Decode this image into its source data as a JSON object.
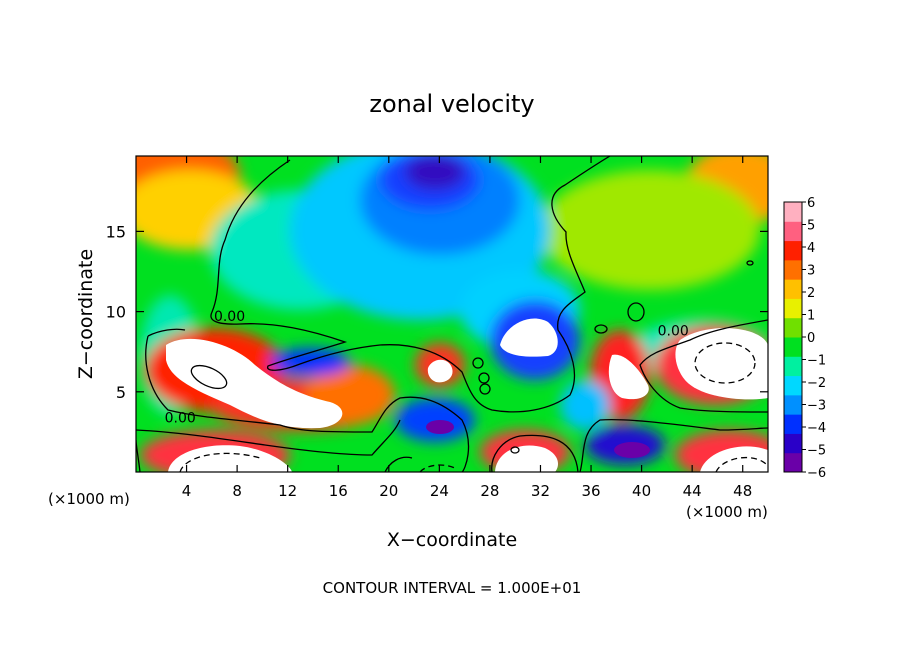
{
  "chart_data": {
    "type": "heatmap",
    "title": "zonal velocity",
    "xlabel": "X−coordinate",
    "ylabel": "Z−coordinate",
    "x_scale_note_left": "(×1000 m)",
    "x_scale_note_right": "(×1000 m)",
    "footer": "CONTOUR INTERVAL = 1.000E+01",
    "xlim": [
      0,
      50
    ],
    "ylim": [
      0,
      19.7
    ],
    "x_ticks": [
      4,
      8,
      12,
      16,
      20,
      24,
      28,
      32,
      36,
      40,
      44,
      48
    ],
    "x_tick_labels": [
      "4",
      "8",
      "12",
      "16",
      "20",
      "24",
      "28",
      "32",
      "36",
      "40",
      "44",
      "48"
    ],
    "y_ticks": [
      5,
      10,
      15
    ],
    "y_tick_labels": [
      "5",
      "10",
      "15"
    ],
    "colorbar": {
      "min": -6,
      "max": 6,
      "ticks": [
        6,
        5,
        4,
        3,
        2,
        1,
        0,
        -1,
        -2,
        -3,
        -4,
        -5,
        -6
      ],
      "tick_labels": [
        "6",
        "5",
        "4",
        "3",
        "2",
        "1",
        "0",
        "−1",
        "−2",
        "−3",
        "−4",
        "−5",
        "−6"
      ],
      "colors": [
        "#6a00a8",
        "#2a00c8",
        "#0030ff",
        "#0090ff",
        "#00d8ff",
        "#00f0a0",
        "#00e020",
        "#70e000",
        "#e8f000",
        "#ffc000",
        "#ff7000",
        "#ff2000",
        "#ff6080",
        "#ffb0c0"
      ],
      "overflow_color": "#ffffff"
    },
    "contour_labels": [
      {
        "text": "0.00",
        "x": 7.4,
        "y": 9.4
      },
      {
        "text": "0.00",
        "x": 3.5,
        "y": 3.1
      },
      {
        "text": "0.00",
        "x": 42.5,
        "y": 8.5
      }
    ],
    "field_features": [
      {
        "x": 0.5,
        "z": 18.5,
        "value": 4.5
      },
      {
        "x": 49.5,
        "z": 18.5,
        "value": 4
      },
      {
        "x": 24,
        "z": 17.5,
        "value": -5
      },
      {
        "x": 25,
        "z": 14,
        "value": -3.5
      },
      {
        "x": 6,
        "z": 6.5,
        "value": 12
      },
      {
        "x": 13,
        "z": 4,
        "value": 10
      },
      {
        "x": 4.5,
        "z": 1,
        "value": 11
      },
      {
        "x": 30.5,
        "z": 8.5,
        "value": -12
      },
      {
        "x": 24,
        "z": 3,
        "value": -6
      },
      {
        "x": 39.5,
        "z": 6.5,
        "value": 9
      },
      {
        "x": 46.5,
        "z": 7,
        "value": 12
      },
      {
        "x": 39,
        "z": 1.5,
        "value": -6
      }
    ]
  }
}
